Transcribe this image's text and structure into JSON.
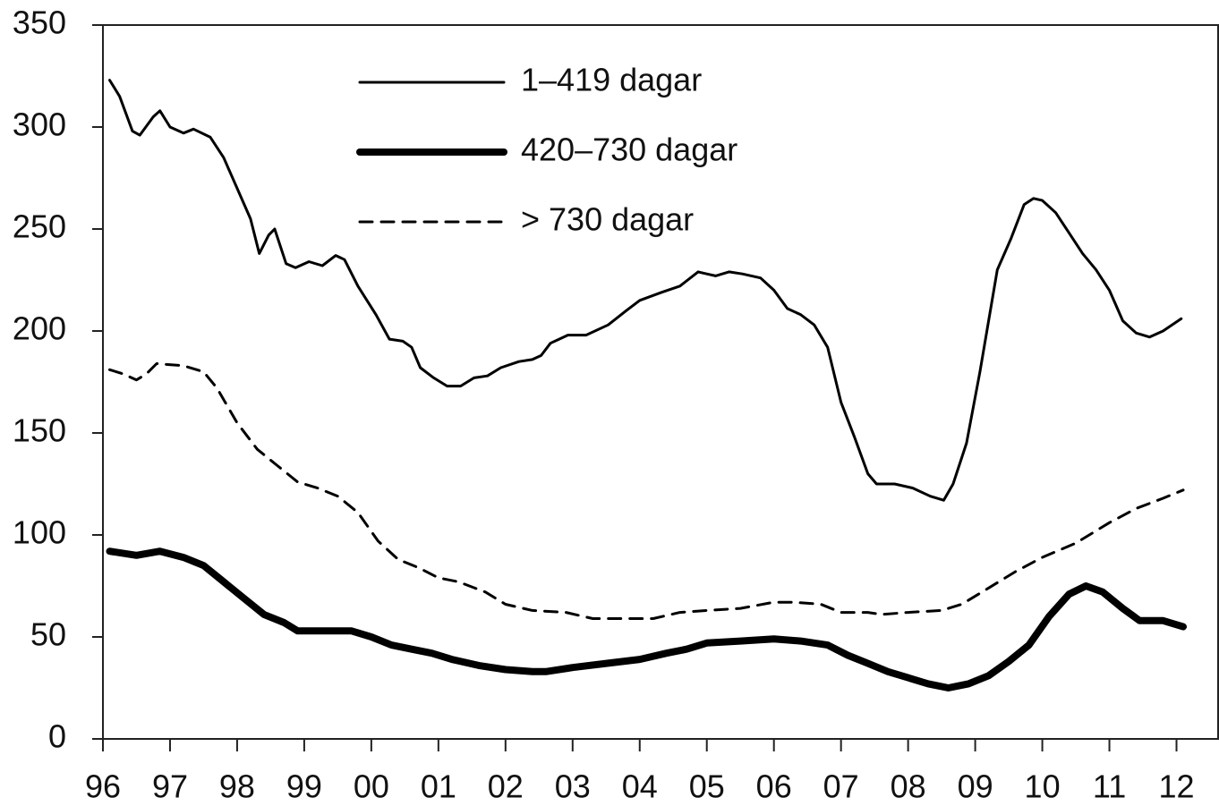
{
  "chart_data": {
    "type": "line",
    "xlim": [
      1996,
      2012.62
    ],
    "xticks": [
      {
        "value": 1996,
        "label": "96"
      },
      {
        "value": 1997,
        "label": "97"
      },
      {
        "value": 1998,
        "label": "98"
      },
      {
        "value": 1999,
        "label": "99"
      },
      {
        "value": 2000,
        "label": "00"
      },
      {
        "value": 2001,
        "label": "01"
      },
      {
        "value": 2002,
        "label": "02"
      },
      {
        "value": 2003,
        "label": "03"
      },
      {
        "value": 2004,
        "label": "04"
      },
      {
        "value": 2005,
        "label": "05"
      },
      {
        "value": 2006,
        "label": "06"
      },
      {
        "value": 2007,
        "label": "07"
      },
      {
        "value": 2008,
        "label": "08"
      },
      {
        "value": 2009,
        "label": "09"
      },
      {
        "value": 2010,
        "label": "10"
      },
      {
        "value": 2011,
        "label": "11"
      },
      {
        "value": 2012,
        "label": "12"
      }
    ],
    "ylim": [
      0,
      350
    ],
    "yticks": [
      0,
      50,
      100,
      150,
      200,
      250,
      300,
      350
    ],
    "grid": false,
    "legend": "top-center",
    "series": [
      {
        "name": "1–419 dagar",
        "color": "#000000",
        "linewidth": 3,
        "linestyle": "solid",
        "x": [
          1996.1,
          1996.25,
          1996.44,
          1996.55,
          1996.75,
          1996.85,
          1997.0,
          1997.2,
          1997.35,
          1997.6,
          1997.8,
          1998.0,
          1998.2,
          1998.33,
          1998.47,
          1998.56,
          1998.73,
          1998.87,
          1999.07,
          1999.27,
          1999.47,
          1999.6,
          1999.8,
          2000.07,
          2000.27,
          2000.47,
          2000.6,
          2000.73,
          2000.93,
          2001.13,
          2001.33,
          2001.53,
          2001.73,
          2001.93,
          2002.2,
          2002.4,
          2002.53,
          2002.67,
          2002.93,
          2003.2,
          2003.53,
          2003.8,
          2004.0,
          2004.33,
          2004.6,
          2004.87,
          2005.0,
          2005.13,
          2005.33,
          2005.53,
          2005.8,
          2006.0,
          2006.2,
          2006.4,
          2006.6,
          2006.8,
          2007.0,
          2007.2,
          2007.4,
          2007.53,
          2007.8,
          2008.07,
          2008.33,
          2008.53,
          2008.67,
          2008.87,
          2009.07,
          2009.33,
          2009.53,
          2009.73,
          2009.87,
          2010.0,
          2010.2,
          2010.4,
          2010.6,
          2010.8,
          2011.0,
          2011.2,
          2011.4,
          2011.6,
          2011.8,
          2012.07
        ],
        "values": [
          323,
          315,
          298,
          296,
          305,
          308,
          300,
          297,
          299,
          295,
          285,
          270,
          255,
          238,
          247,
          250,
          233,
          231,
          234,
          232,
          237,
          235,
          222,
          208,
          196,
          195,
          192,
          182,
          177,
          173,
          173,
          177,
          178,
          182,
          185,
          186,
          188,
          194,
          198,
          198,
          203,
          210,
          215,
          219,
          222,
          229,
          228,
          227,
          229,
          228,
          226,
          220,
          211,
          208,
          203,
          192,
          165,
          148,
          130,
          125,
          125,
          123,
          119,
          117,
          125,
          145,
          180,
          230,
          245,
          262,
          265,
          264,
          258,
          248,
          238,
          230,
          220,
          205,
          199,
          197,
          200,
          206
        ]
      },
      {
        "name": "420–730 dagar",
        "color": "#000000",
        "linewidth": 8,
        "linestyle": "solid",
        "x": [
          1996.1,
          1996.5,
          1996.85,
          1997.2,
          1997.5,
          1997.8,
          1998.1,
          1998.4,
          1998.7,
          1998.9,
          1999.2,
          1999.5,
          1999.7,
          2000.0,
          2000.3,
          2000.6,
          2000.9,
          2001.2,
          2001.6,
          2002.0,
          2002.4,
          2002.6,
          2003.0,
          2003.5,
          2004.0,
          2004.4,
          2004.7,
          2005.0,
          2005.5,
          2006.0,
          2006.4,
          2006.8,
          2007.1,
          2007.4,
          2007.7,
          2008.0,
          2008.3,
          2008.6,
          2008.9,
          2009.2,
          2009.5,
          2009.8,
          2010.1,
          2010.4,
          2010.65,
          2010.9,
          2011.2,
          2011.45,
          2011.8,
          2012.1
        ],
        "values": [
          92,
          90,
          92,
          89,
          85,
          77,
          69,
          61,
          57,
          53,
          53,
          53,
          53,
          50,
          46,
          44,
          42,
          39,
          36,
          34,
          33,
          33,
          35,
          37,
          39,
          42,
          44,
          47,
          48,
          49,
          48,
          46,
          41,
          37,
          33,
          30,
          27,
          25,
          27,
          31,
          38,
          46,
          60,
          71,
          75,
          72,
          64,
          58,
          58,
          55
        ]
      },
      {
        "name": "> 730 dagar",
        "color": "#000000",
        "linewidth": 3,
        "linestyle": "dashed",
        "x": [
          1996.1,
          1996.3,
          1996.5,
          1996.65,
          1996.8,
          1997.2,
          1997.5,
          1997.7,
          1998.0,
          1998.3,
          1998.6,
          1998.9,
          1999.2,
          1999.5,
          1999.8,
          2000.1,
          2000.4,
          2000.7,
          2001.0,
          2001.3,
          2001.7,
          2002.0,
          2002.4,
          2002.9,
          2003.3,
          2003.8,
          2004.2,
          2004.6,
          2005.0,
          2005.5,
          2006.0,
          2006.3,
          2006.7,
          2007.0,
          2007.4,
          2007.6,
          2008.0,
          2008.5,
          2008.8,
          2009.2,
          2009.6,
          2010.0,
          2010.5,
          2011.0,
          2011.4,
          2011.8,
          2012.1
        ],
        "values": [
          181,
          179,
          176,
          179,
          184,
          183,
          180,
          172,
          155,
          142,
          134,
          126,
          123,
          119,
          111,
          97,
          88,
          84,
          79,
          77,
          72,
          66,
          63,
          62,
          59,
          59,
          59,
          62,
          63,
          64,
          67,
          67,
          66,
          62,
          62,
          61,
          62,
          63,
          66,
          74,
          82,
          89,
          96,
          106,
          113,
          118,
          122
        ]
      }
    ]
  }
}
